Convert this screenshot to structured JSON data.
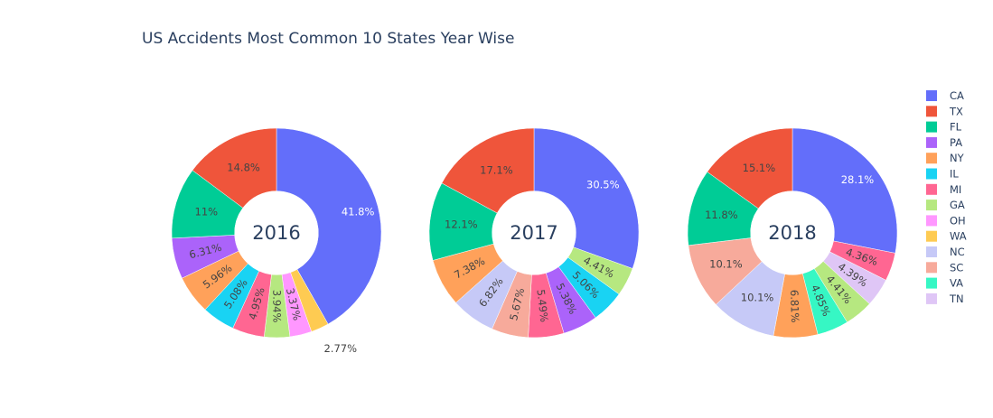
{
  "chart_data": {
    "type": "pie",
    "title": "US Accidents Most Common 10 States Year Wise",
    "colors": {
      "CA": "#636efa",
      "TX": "#ef553b",
      "FL": "#00cc96",
      "PA": "#ab63fa",
      "NY": "#ffa15a",
      "IL": "#19d3f3",
      "MI": "#ff6692",
      "GA": "#b6e880",
      "OH": "#ff97ff",
      "WA": "#fecb52",
      "NC": "#c6c9f7",
      "SC": "#f7aa9b",
      "VA": "#36f7c4",
      "TN": "#dfc6f6"
    },
    "legend": [
      "CA",
      "TX",
      "FL",
      "PA",
      "NY",
      "IL",
      "MI",
      "GA",
      "OH",
      "WA",
      "NC",
      "SC",
      "VA",
      "TN"
    ],
    "legend_position": "top-right",
    "hole": 0.4,
    "pies": [
      {
        "year": "2016",
        "slices": [
          {
            "label": "CA",
            "value": 41.8,
            "text": "41.8%"
          },
          {
            "label": "WA",
            "value": 2.77,
            "text": "2.77%"
          },
          {
            "label": "OH",
            "value": 3.37,
            "text": "3.37%"
          },
          {
            "label": "GA",
            "value": 3.94,
            "text": "3.94%"
          },
          {
            "label": "MI",
            "value": 4.95,
            "text": "4.95%"
          },
          {
            "label": "IL",
            "value": 5.08,
            "text": "5.08%"
          },
          {
            "label": "NY",
            "value": 5.96,
            "text": "5.96%"
          },
          {
            "label": "PA",
            "value": 6.31,
            "text": "6.31%"
          },
          {
            "label": "FL",
            "value": 11.0,
            "text": "11%"
          },
          {
            "label": "TX",
            "value": 14.8,
            "text": "14.8%"
          }
        ]
      },
      {
        "year": "2017",
        "slices": [
          {
            "label": "CA",
            "value": 30.5,
            "text": "30.5%"
          },
          {
            "label": "GA",
            "value": 4.41,
            "text": "4.41%"
          },
          {
            "label": "IL",
            "value": 5.06,
            "text": "5.06%"
          },
          {
            "label": "PA",
            "value": 5.38,
            "text": "5.38%"
          },
          {
            "label": "MI",
            "value": 5.49,
            "text": "5.49%"
          },
          {
            "label": "SC",
            "value": 5.67,
            "text": "5.67%"
          },
          {
            "label": "NC",
            "value": 6.82,
            "text": "6.82%"
          },
          {
            "label": "NY",
            "value": 7.38,
            "text": "7.38%"
          },
          {
            "label": "FL",
            "value": 12.1,
            "text": "12.1%"
          },
          {
            "label": "TX",
            "value": 17.1,
            "text": "17.1%"
          }
        ]
      },
      {
        "year": "2018",
        "slices": [
          {
            "label": "CA",
            "value": 28.1,
            "text": "28.1%"
          },
          {
            "label": "MI",
            "value": 4.36,
            "text": "4.36%"
          },
          {
            "label": "TN",
            "value": 4.39,
            "text": "4.39%"
          },
          {
            "label": "GA",
            "value": 4.41,
            "text": "4.41%"
          },
          {
            "label": "VA",
            "value": 4.85,
            "text": "4.85%"
          },
          {
            "label": "NY",
            "value": 6.81,
            "text": "6.81%"
          },
          {
            "label": "NC",
            "value": 10.1,
            "text": "10.1%"
          },
          {
            "label": "SC",
            "value": 10.1,
            "text": "10.1%"
          },
          {
            "label": "FL",
            "value": 11.8,
            "text": "11.8%"
          },
          {
            "label": "TX",
            "value": 15.1,
            "text": "15.1%"
          }
        ]
      }
    ]
  }
}
